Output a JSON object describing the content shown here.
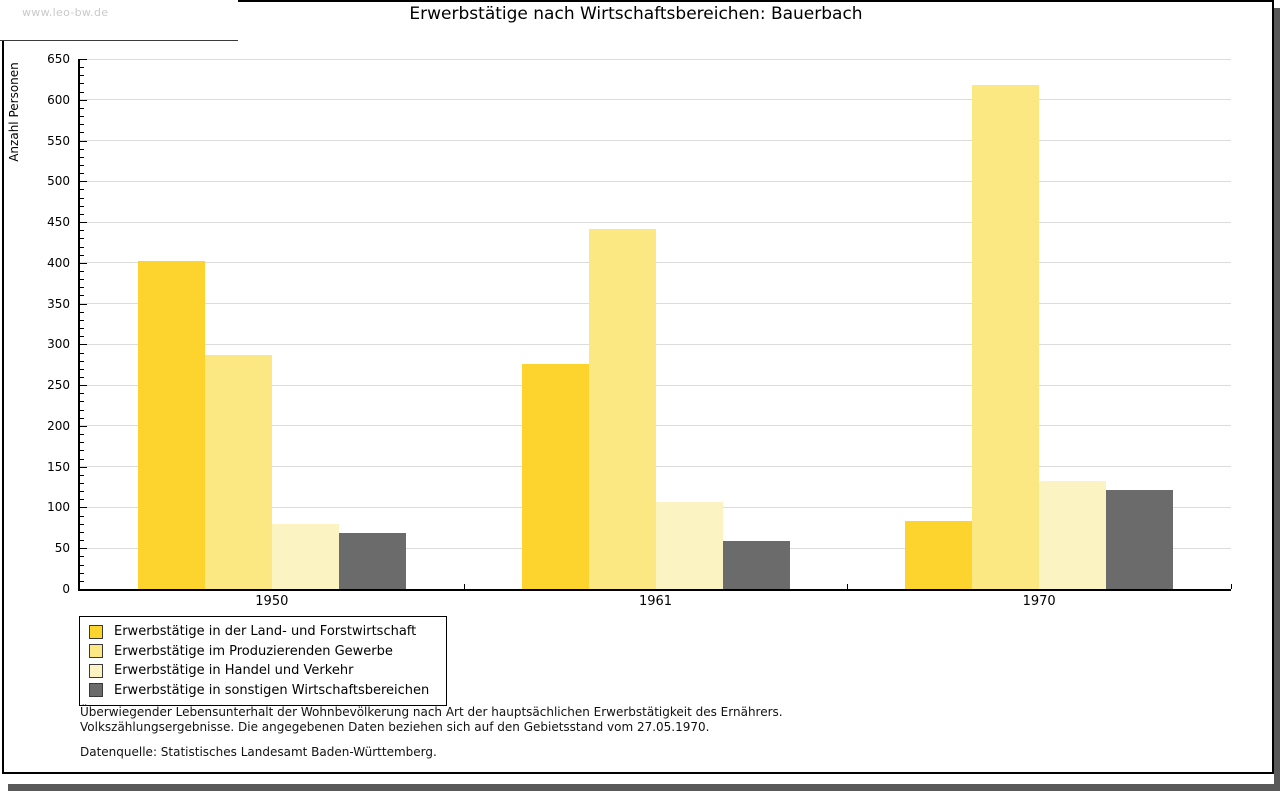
{
  "header": {
    "watermark": "www.leo-bw.de",
    "title": "Erwerbstätige nach Wirtschaftsbereichen: Bauerbach"
  },
  "chart_data": {
    "type": "bar",
    "title": "Erwerbstätige nach Wirtschaftsbereichen: Bauerbach",
    "xlabel": "",
    "ylabel": "Anzahl Personen",
    "ylim": [
      0,
      650
    ],
    "ytick_step": 50,
    "ytick_minor_step": 10,
    "grid": true,
    "legend_position": "bottom-left",
    "categories": [
      "1950",
      "1961",
      "1970"
    ],
    "series": [
      {
        "name": "Erwerbstätige in der Land- und Forstwirtschaft",
        "color": "#fdd32e",
        "values": [
          402,
          276,
          83
        ]
      },
      {
        "name": "Erwerbstätige im Produzierenden Gewerbe",
        "color": "#fce883",
        "values": [
          287,
          441,
          618
        ]
      },
      {
        "name": "Erwerbstätige in Handel und Verkehr",
        "color": "#fcf3c3",
        "values": [
          80,
          107,
          133
        ]
      },
      {
        "name": "Erwerbstätige in sonstigen Wirtschaftsbereichen",
        "color": "#6b6b6b",
        "values": [
          69,
          59,
          122
        ]
      }
    ]
  },
  "footnotes": {
    "line1": "Überwiegender Lebensunterhalt der Wohnbevölkerung nach Art der hauptsächlichen Erwerbstätigkeit des Ernährers.",
    "line2": "Volkszählungsergebnisse. Die angegebenen Daten beziehen sich auf den Gebietsstand vom 27.05.1970.",
    "source": "Datenquelle: Statistisches Landesamt Baden-Württemberg."
  },
  "colors": {
    "background": "#ffffff",
    "axis": "#000000",
    "grid": "#dcdcdc",
    "watermark": "#c9c9c9",
    "shadow": "#595959"
  }
}
